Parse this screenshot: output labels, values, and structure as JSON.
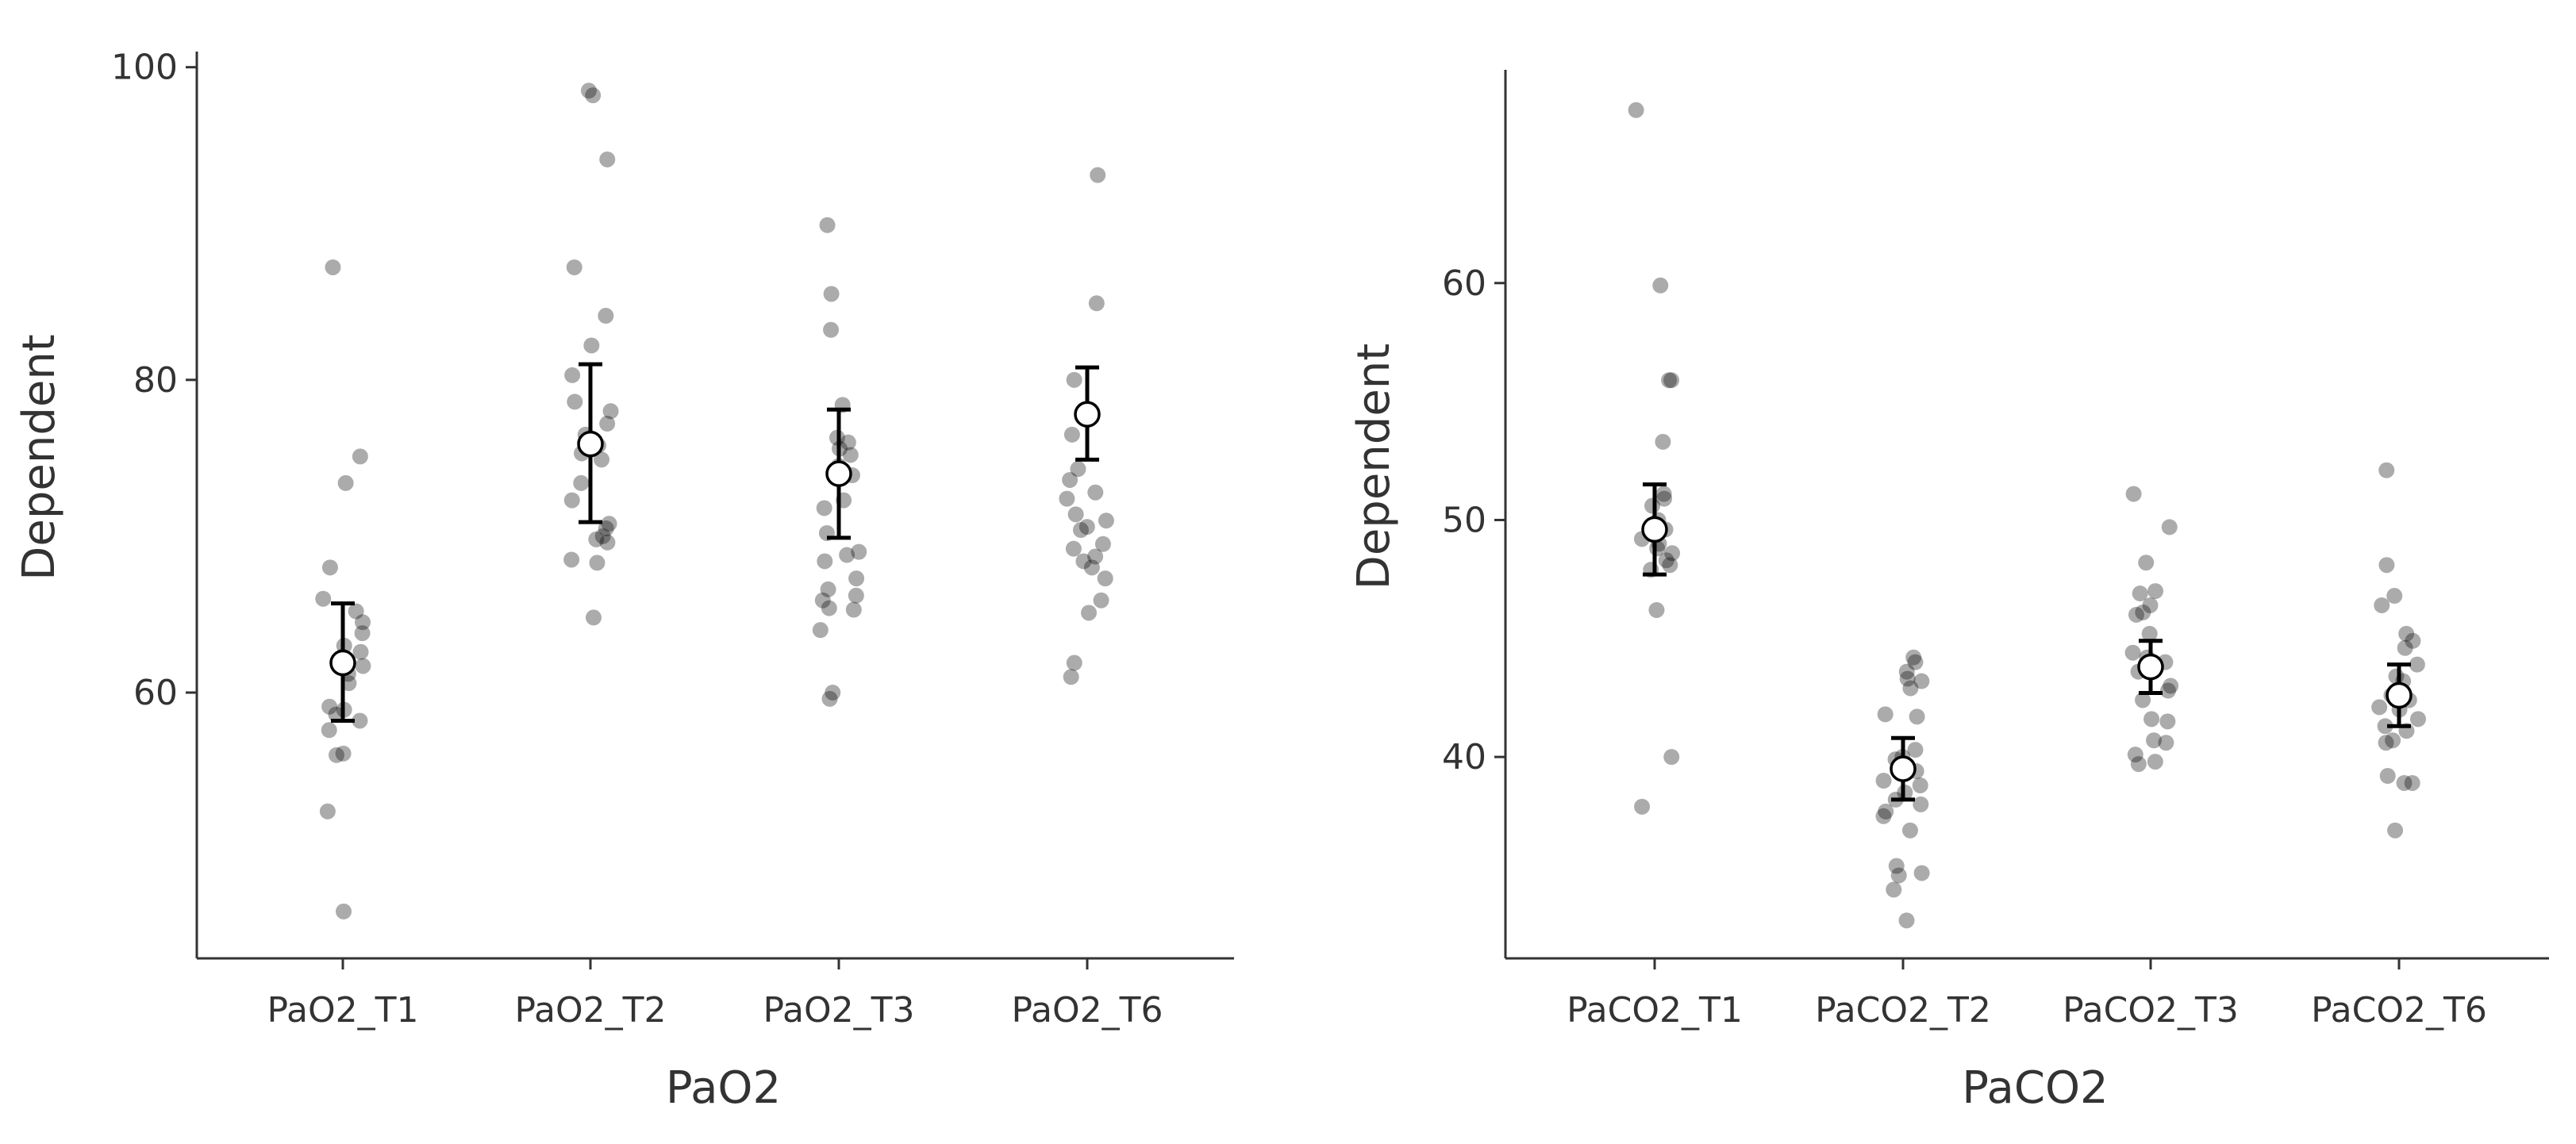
{
  "chart_data": [
    {
      "type": "scatter",
      "xlabel": "PaO2",
      "ylabel": "Dependent",
      "ylim": [
        43,
        101
      ],
      "yticks": [
        60,
        80,
        100
      ],
      "grid": false,
      "categories": [
        "PaO2_T1",
        "PaO2_T2",
        "PaO2_T3",
        "PaO2_T6"
      ],
      "points": [
        [
          87.2,
          75.1,
          73.4,
          68.0,
          66.0,
          65.2,
          64.5,
          63.8,
          63.0,
          62.6,
          62.3,
          61.7,
          61.2,
          60.6,
          59.1,
          58.9,
          58.6,
          58.2,
          57.6,
          56.1,
          56.0,
          52.4,
          46.0
        ],
        [
          98.5,
          98.2,
          94.1,
          87.2,
          84.1,
          82.2,
          80.3,
          78.6,
          78.0,
          77.2,
          76.5,
          75.8,
          75.3,
          74.9,
          73.4,
          72.3,
          70.8,
          70.5,
          70.0,
          69.8,
          69.6,
          68.5,
          68.3,
          64.8
        ],
        [
          89.9,
          85.5,
          83.2,
          78.4,
          76.3,
          76.0,
          75.6,
          75.2,
          74.5,
          73.9,
          72.3,
          71.8,
          70.2,
          69.0,
          68.8,
          68.4,
          67.3,
          66.6,
          66.2,
          65.9,
          65.4,
          65.3,
          64.0,
          60.0,
          59.6
        ],
        [
          93.1,
          84.9,
          80.0,
          77.9,
          76.5,
          74.3,
          73.6,
          72.8,
          72.4,
          71.4,
          71.0,
          70.6,
          70.4,
          69.5,
          69.2,
          68.7,
          68.4,
          68.0,
          67.3,
          65.9,
          65.1,
          61.9,
          61.0
        ]
      ],
      "means": [
        61.9,
        75.9,
        74.0,
        77.8
      ],
      "error_low": [
        58.2,
        70.9,
        69.9,
        74.9
      ],
      "error_high": [
        65.7,
        81.0,
        78.1,
        80.8
      ]
    },
    {
      "type": "scatter",
      "xlabel": "PaCO2",
      "ylabel": "Dependent",
      "ylim": [
        31.5,
        69
      ],
      "yticks": [
        40,
        50,
        60
      ],
      "grid": false,
      "categories": [
        "PaCO2_T1",
        "PaCO2_T2",
        "PaCO2_T3",
        "PaCO2_T6"
      ],
      "points": [
        [
          67.3,
          59.9,
          55.9,
          55.9,
          53.3,
          51.1,
          50.9,
          50.6,
          50.0,
          49.6,
          49.2,
          49.0,
          48.8,
          48.6,
          48.3,
          48.1,
          47.9,
          46.2,
          40.0,
          37.9
        ],
        [
          44.2,
          44.0,
          43.6,
          43.3,
          43.2,
          42.9,
          41.8,
          41.7,
          40.3,
          40.0,
          39.9,
          39.4,
          39.0,
          38.8,
          38.5,
          38.2,
          38.0,
          37.7,
          37.5,
          36.9,
          35.4,
          35.1,
          35.0,
          34.4,
          33.1
        ],
        [
          51.1,
          49.7,
          48.2,
          47.0,
          46.9,
          46.4,
          46.1,
          46.0,
          45.2,
          44.4,
          44.2,
          44.0,
          43.6,
          43.0,
          42.8,
          42.4,
          41.6,
          41.5,
          40.7,
          40.6,
          40.1,
          39.8,
          39.7
        ],
        [
          52.1,
          48.1,
          46.8,
          46.4,
          45.2,
          44.9,
          44.6,
          43.9,
          43.4,
          43.2,
          42.6,
          42.4,
          42.1,
          42.0,
          41.6,
          41.3,
          41.1,
          40.7,
          40.6,
          39.2,
          38.9,
          38.9,
          36.9
        ]
      ],
      "means": [
        49.6,
        39.5,
        43.8,
        42.6
      ],
      "error_low": [
        47.7,
        38.2,
        42.7,
        41.3
      ],
      "error_high": [
        51.5,
        40.8,
        44.9,
        43.9
      ]
    }
  ]
}
